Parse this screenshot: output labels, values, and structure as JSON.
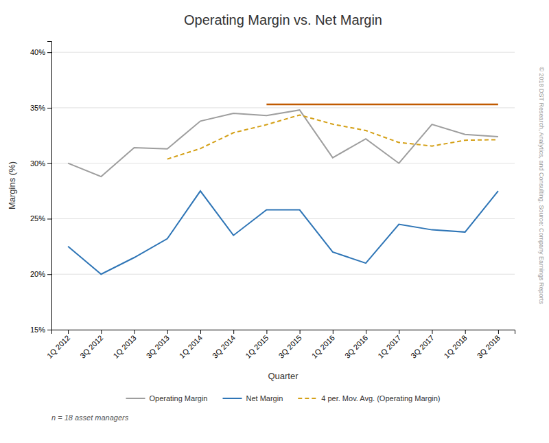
{
  "chart_data": {
    "type": "line",
    "title": "Operating Margin vs. Net Margin",
    "x_label": "Quarter",
    "y_label": "Margins (%)",
    "annotations": [
      "n = 18 asset managers",
      "© 2018 DST Research, Analytics, and Consulting.  Source: Company Earnings Reports"
    ],
    "categories": [
      "1Q 2012",
      "3Q 2012",
      "1Q 2013",
      "3Q 2013",
      "1Q 2014",
      "3Q 2014",
      "1Q 2015",
      "3Q 2015",
      "1Q 2016",
      "3Q 2016",
      "1Q 2017",
      "3Q 2017",
      "1Q 2018",
      "3Q 2018"
    ],
    "series": [
      {
        "name": "Operating Margin",
        "color": "#9e9e9e",
        "line_style": "solid",
        "values": [
          30.0,
          28.8,
          31.4,
          31.3,
          33.8,
          34.5,
          34.3,
          34.8,
          30.5,
          32.2,
          30.0,
          33.5,
          32.6,
          32.4
        ]
      },
      {
        "name": "Net Margin",
        "color": "#2e75b6",
        "line_style": "solid",
        "values": [
          22.5,
          20.0,
          21.5,
          23.2,
          27.5,
          23.5,
          25.8,
          25.8,
          22.0,
          21.0,
          24.5,
          24.0,
          23.8,
          27.5
        ]
      },
      {
        "name": "4 per. Mov. Avg. (Operating Margin)",
        "color": "#d4a017",
        "line_style": "dashed",
        "values": [
          null,
          null,
          null,
          30.375,
          31.325,
          32.75,
          33.475,
          34.35,
          33.525,
          32.95,
          31.875,
          31.55,
          32.075,
          32.125
        ]
      },
      {
        "color": "#c05a00",
        "line_style": "solid",
        "values": [
          null,
          null,
          null,
          null,
          null,
          null,
          35.3,
          35.3,
          35.3,
          35.3,
          35.3,
          35.3,
          35.3,
          35.3
        ]
      }
    ],
    "ylim": [
      15,
      41
    ],
    "yticks": [
      {
        "value": 15,
        "label": "15%"
      },
      {
        "value": 20,
        "label": "20%"
      },
      {
        "value": 25,
        "label": "25%"
      },
      {
        "value": 30,
        "label": "30%"
      },
      {
        "value": 35,
        "label": "35%"
      },
      {
        "value": 40,
        "label": "40%"
      }
    ],
    "grid": true,
    "legend": "bottom"
  }
}
